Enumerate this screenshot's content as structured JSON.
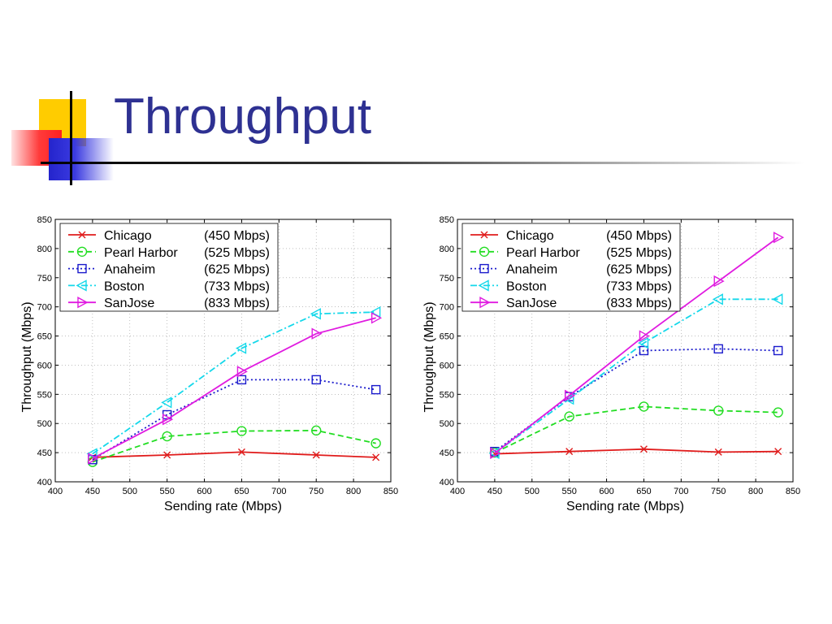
{
  "slide": {
    "title": "Throughput"
  },
  "chart_data": [
    {
      "type": "line",
      "xlabel": "Sending rate (Mbps)",
      "ylabel": "Throughput (Mbps)",
      "xlim": [
        400,
        850
      ],
      "ylim": [
        400,
        850
      ],
      "xticks": [
        400,
        450,
        500,
        550,
        600,
        650,
        700,
        750,
        800,
        850
      ],
      "yticks": [
        400,
        450,
        500,
        550,
        600,
        650,
        700,
        750,
        800,
        850
      ],
      "grid": true,
      "legend_position": "top-left",
      "x": [
        450,
        550,
        650,
        750,
        830
      ],
      "series": [
        {
          "name": "Chicago",
          "rate": "(450 Mbps)",
          "color": "#e01b1b",
          "dash": "",
          "marker": "x",
          "values": [
            442,
            446,
            451,
            446,
            442
          ]
        },
        {
          "name": "Pearl Harbor",
          "rate": "(525 Mbps)",
          "color": "#22dd22",
          "dash": "7,4",
          "marker": "circle",
          "values": [
            434,
            478,
            487,
            488,
            466
          ]
        },
        {
          "name": "Anaheim",
          "rate": "(625 Mbps)",
          "color": "#1a1acc",
          "dash": "2,3",
          "marker": "square",
          "values": [
            438,
            515,
            575,
            575,
            558
          ]
        },
        {
          "name": "Boston",
          "rate": "(733 Mbps)",
          "color": "#14d8ea",
          "dash": "8,3,2,3",
          "marker": "triangle-left",
          "values": [
            448,
            536,
            629,
            688,
            691
          ]
        },
        {
          "name": "SanJose",
          "rate": "(833 Mbps)",
          "color": "#e01be0",
          "dash": "",
          "marker": "triangle-right",
          "values": [
            440,
            507,
            589,
            654,
            681
          ]
        }
      ]
    },
    {
      "type": "line",
      "xlabel": "Sending rate (Mbps)",
      "ylabel": "Throughput (Mbps)",
      "xlim": [
        400,
        850
      ],
      "ylim": [
        400,
        850
      ],
      "xticks": [
        400,
        450,
        500,
        550,
        600,
        650,
        700,
        750,
        800,
        850
      ],
      "yticks": [
        400,
        450,
        500,
        550,
        600,
        650,
        700,
        750,
        800,
        850
      ],
      "grid": true,
      "legend_position": "top-left",
      "x": [
        450,
        550,
        650,
        750,
        830
      ],
      "series": [
        {
          "name": "Chicago",
          "rate": "(450 Mbps)",
          "color": "#e01b1b",
          "dash": "",
          "marker": "x",
          "values": [
            448,
            452,
            456,
            451,
            452
          ]
        },
        {
          "name": "Pearl Harbor",
          "rate": "(525 Mbps)",
          "color": "#22dd22",
          "dash": "7,4",
          "marker": "circle",
          "values": [
            450,
            512,
            529,
            522,
            519
          ]
        },
        {
          "name": "Anaheim",
          "rate": "(625 Mbps)",
          "color": "#1a1acc",
          "dash": "2,3",
          "marker": "square",
          "values": [
            452,
            546,
            625,
            628,
            625
          ]
        },
        {
          "name": "Boston",
          "rate": "(733 Mbps)",
          "color": "#14d8ea",
          "dash": "8,3,2,3",
          "marker": "triangle-left",
          "values": [
            449,
            542,
            638,
            713,
            713
          ]
        },
        {
          "name": "SanJose",
          "rate": "(833 Mbps)",
          "color": "#e01be0",
          "dash": "",
          "marker": "triangle-right",
          "values": [
            449,
            548,
            650,
            744,
            819
          ]
        }
      ]
    }
  ]
}
